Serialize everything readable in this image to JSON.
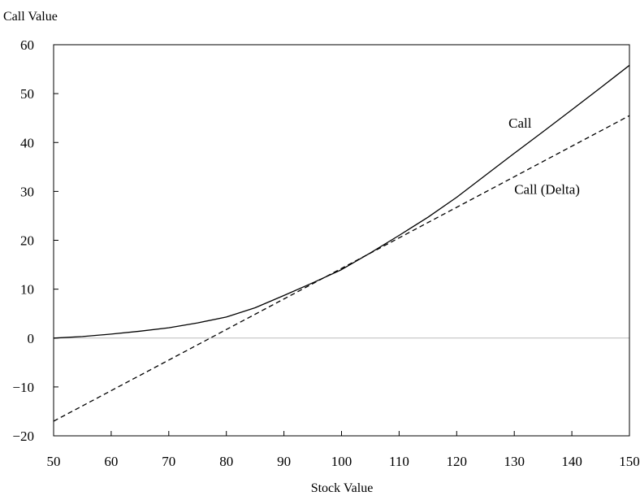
{
  "chart_data": {
    "type": "line",
    "xlabel": "Stock Value",
    "ylabel": "Call Value",
    "xlim": [
      50,
      150
    ],
    "ylim": [
      -20,
      60
    ],
    "x_ticks": [
      50,
      60,
      70,
      80,
      90,
      100,
      110,
      120,
      130,
      140,
      150
    ],
    "y_ticks": [
      -20,
      -10,
      0,
      10,
      20,
      30,
      40,
      50,
      60
    ],
    "grid": false,
    "zero_line": true,
    "zero_line_color": "#bbbbbb",
    "series": [
      {
        "name": "Call",
        "style": "solid",
        "color": "#000000",
        "label_at": [
          129,
          43
        ],
        "points": [
          [
            50,
            0.0
          ],
          [
            55,
            0.3
          ],
          [
            60,
            0.8
          ],
          [
            65,
            1.4
          ],
          [
            70,
            2.1
          ],
          [
            75,
            3.1
          ],
          [
            80,
            4.3
          ],
          [
            85,
            6.2
          ],
          [
            90,
            8.7
          ],
          [
            95,
            11.3
          ],
          [
            100,
            14.0
          ],
          [
            105,
            17.4
          ],
          [
            110,
            21.0
          ],
          [
            115,
            24.7
          ],
          [
            120,
            28.8
          ],
          [
            125,
            33.3
          ],
          [
            130,
            37.8
          ],
          [
            135,
            42.2
          ],
          [
            140,
            46.7
          ],
          [
            145,
            51.2
          ],
          [
            150,
            55.8
          ]
        ]
      },
      {
        "name": "Call (Delta)",
        "style": "dashed",
        "color": "#000000",
        "label_at": [
          130,
          29.5
        ],
        "points": [
          [
            50,
            -17.0
          ],
          [
            150,
            45.5
          ]
        ]
      }
    ]
  }
}
